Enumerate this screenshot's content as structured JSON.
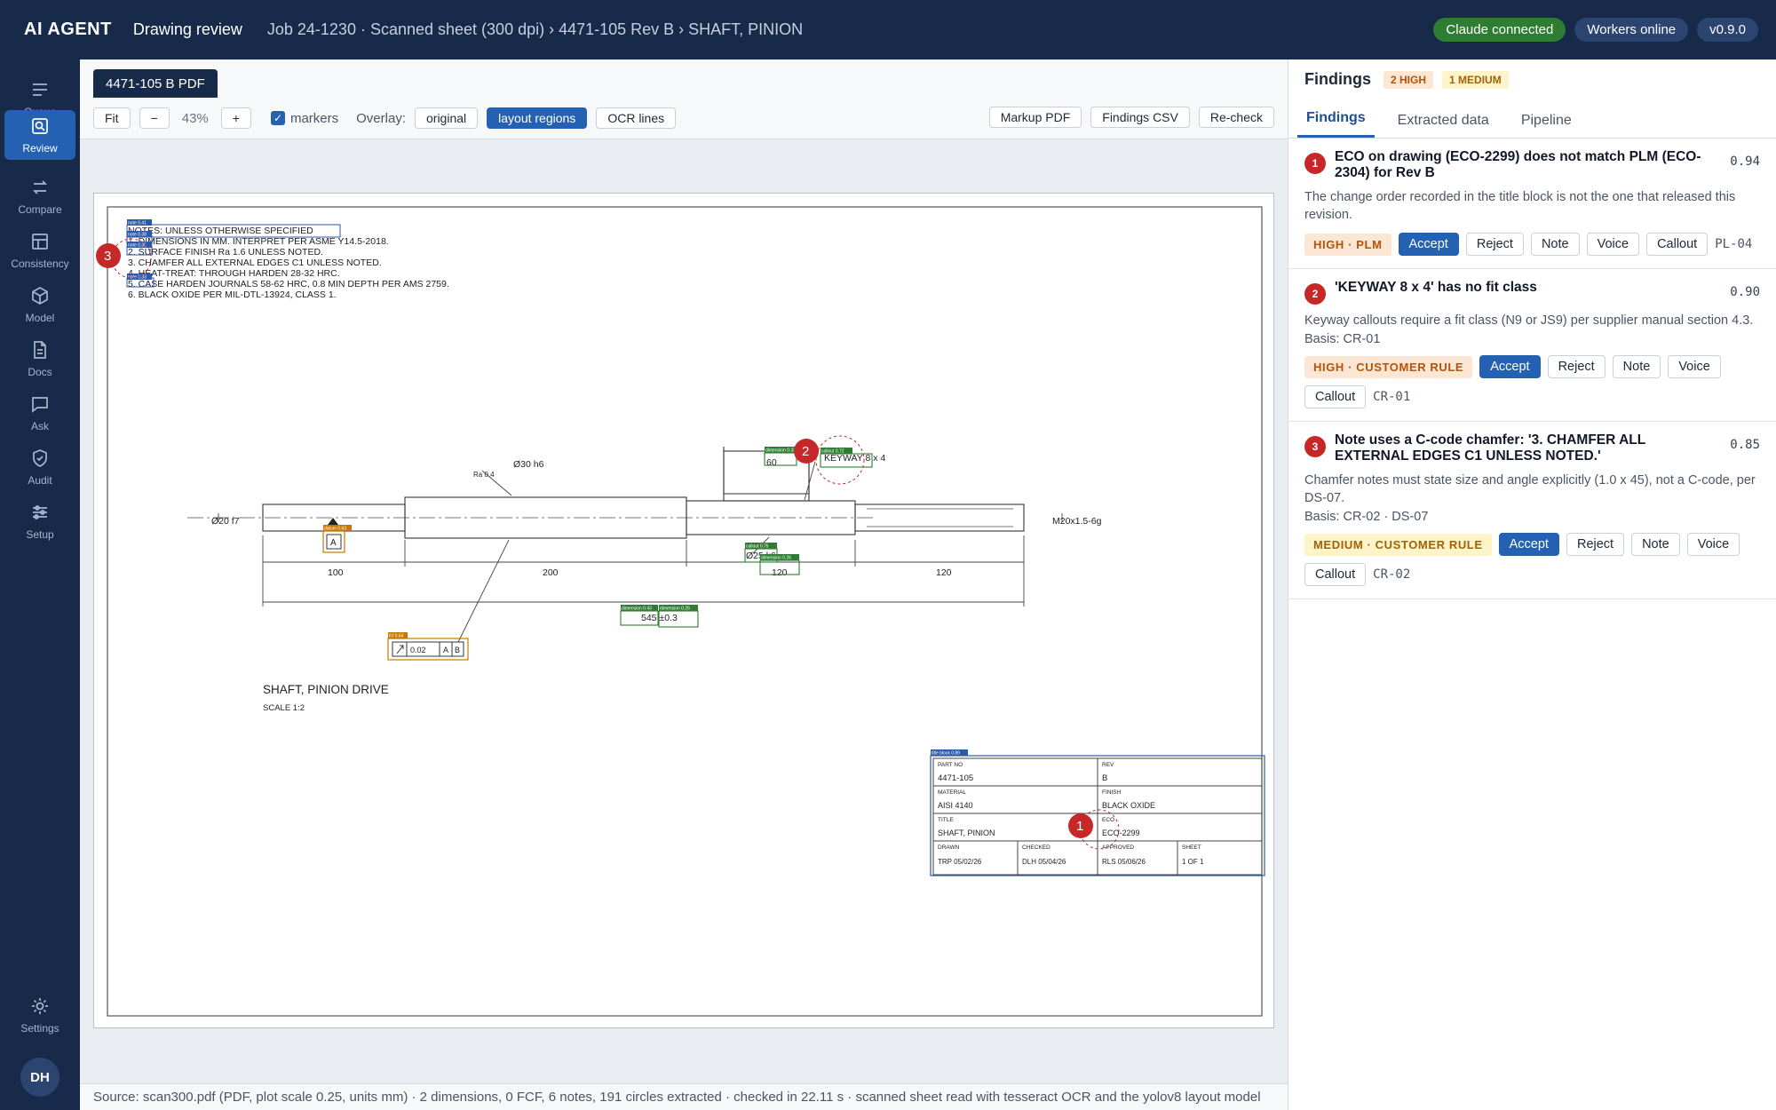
{
  "topbar": {
    "brand": "AI AGENT",
    "app_title": "Drawing review",
    "breadcrumb": "Job 24-1230 · Scanned sheet (300 dpi) › 4471-105 Rev B › SHAFT, PINION",
    "status": [
      "Claude connected",
      "Workers online",
      "v0.9.0"
    ]
  },
  "rail": {
    "items": [
      {
        "label": "Queue",
        "icon": "queue-icon"
      },
      {
        "label": "Review",
        "icon": "review-icon"
      },
      {
        "label": "Compare",
        "icon": "compare-icon"
      },
      {
        "label": "Consistency",
        "icon": "consistency-icon"
      },
      {
        "label": "Model",
        "icon": "model-icon"
      },
      {
        "label": "Docs",
        "icon": "docs-icon"
      },
      {
        "label": "Ask",
        "icon": "ask-icon"
      },
      {
        "label": "Audit",
        "icon": "audit-icon"
      },
      {
        "label": "Setup",
        "icon": "setup-icon"
      }
    ],
    "settings": "Settings",
    "avatar": "DH"
  },
  "viewer": {
    "doc_tab": "4471-105 B PDF",
    "fit": "Fit",
    "zoom_out": "−",
    "zoom": "43%",
    "zoom_in": "+",
    "markers_label": "markers",
    "markers_checked": true,
    "overlay_label": "Overlay:",
    "overlays": [
      "original",
      "layout regions",
      "OCR lines"
    ],
    "overlay_selected": "layout regions",
    "actions": [
      "Markup PDF",
      "Findings CSV",
      "Re-check"
    ],
    "footer": "Source: scan300.pdf (PDF, plot scale 0.25, units mm) · 2 dimensions, 0 FCF, 6 notes, 191 circles extracted · checked in 22.11 s · scanned sheet read with tesseract OCR and the yolov8 layout model"
  },
  "drawing": {
    "notes": [
      "NOTES: UNLESS OTHERWISE SPECIFIED",
      "1. DIMENSIONS IN MM. INTERPRET PER ASME Y14.5-2018.",
      "2. SURFACE FINISH Ra 1.6 UNLESS NOTED.",
      "3. CHAMFER ALL EXTERNAL EDGES C1 UNLESS NOTED.",
      "4. HEAT-TREAT: THROUGH HARDEN 28-32 HRC.",
      "5. CASE HARDEN JOURNALS 58-62 HRC, 0.8 MIN DEPTH PER AMS 2759.",
      "6. BLACK OXIDE PER MIL-DTL-13924, CLASS 1."
    ],
    "dims": {
      "d20": "Ø20 f7",
      "d30": "Ø30 h6",
      "ra": "Ra 0.4",
      "d25": "Ø25 k6",
      "m20": "M20x1.5-6g",
      "keyway": "KEYWAY 8 x 4",
      "d60": "60",
      "l100": "100",
      "l200": "200",
      "l120a": "120",
      "l120b": "120",
      "total": "545 ±0.3",
      "datum_a": "A",
      "fcf_tol": "0.02",
      "fcf_a": "A",
      "fcf_b": "B"
    },
    "tags": {
      "note": "note 0.41",
      "note2": "note 0.38",
      "note3": "note 0.35",
      "note4": "note 0.33",
      "callout": "callout 0.72",
      "dim60": "dimension 0.33",
      "callout2": "callout 0.75",
      "dim2": "dimension 0.26",
      "dim3": "dimension 0.43",
      "dim4": "dimension 0.26",
      "datum": "datum 0.63",
      "fcf": "fcf 0.64",
      "title_block": "title block 0.89"
    },
    "title": "SHAFT, PINION DRIVE",
    "scale": "SCALE 1:2",
    "title_block": {
      "part_no_lbl": "PART NO",
      "part_no": "4471-105",
      "rev_lbl": "REV",
      "rev": "B",
      "material_lbl": "MATERIAL",
      "material": "AISI 4140",
      "finish_lbl": "FINISH",
      "finish": "BLACK OXIDE",
      "title_lbl": "TITLE",
      "title": "SHAFT, PINION",
      "eco_lbl": "ECO",
      "eco": "ECO-2299",
      "drawn_lbl": "DRAWN",
      "drawn": "TRP 05/02/26",
      "checked_lbl": "CHECKED",
      "checked": "DLH 05/04/26",
      "approved_lbl": "APPROVED",
      "approved": "RLS 05/06/26",
      "sheet_lbl": "SHEET",
      "sheet": "1 OF 1"
    },
    "markers": [
      "1",
      "2",
      "3"
    ]
  },
  "panel": {
    "title": "Findings",
    "counts": [
      "2 HIGH",
      "1 MEDIUM"
    ],
    "tabs": [
      "Findings",
      "Extracted data",
      "Pipeline"
    ],
    "findings": [
      {
        "num": "1",
        "title": "ECO on drawing (ECO-2299) does not match PLM (ECO-2304) for Rev B",
        "score": "0.94",
        "desc": "The change order recorded in the title block is not the one that released this revision.",
        "basis": "",
        "severity": "HIGH · PLM",
        "actions": [
          "Accept",
          "Reject",
          "Note",
          "Voice",
          "Callout"
        ],
        "code": "PL-04"
      },
      {
        "num": "2",
        "title": "'KEYWAY 8 x 4' has no fit class",
        "score": "0.90",
        "desc": "Keyway callouts require a fit class (N9 or JS9) per supplier manual section 4.3.",
        "basis": "Basis: CR-01",
        "severity": "HIGH · CUSTOMER RULE",
        "actions": [
          "Accept",
          "Reject",
          "Note",
          "Voice",
          "Callout"
        ],
        "code": "CR-01"
      },
      {
        "num": "3",
        "title": "Note uses a C-code chamfer: '3. CHAMFER ALL EXTERNAL EDGES C1 UNLESS NOTED.'",
        "score": "0.85",
        "desc": "Chamfer notes must state size and angle explicitly (1.0 x 45), not a C-code, per DS-07.",
        "basis": "Basis: CR-02 · DS-07",
        "severity": "MEDIUM · CUSTOMER RULE",
        "actions": [
          "Accept",
          "Reject",
          "Note",
          "Voice",
          "Callout"
        ],
        "code": "CR-02"
      }
    ]
  },
  "colors": {
    "navy": "#172a4a",
    "accent": "#2461b3",
    "marker_red": "#c62828",
    "region_green": "#2e7d32",
    "region_orange": "#c77800",
    "region_blue": "#2a5aa8"
  }
}
